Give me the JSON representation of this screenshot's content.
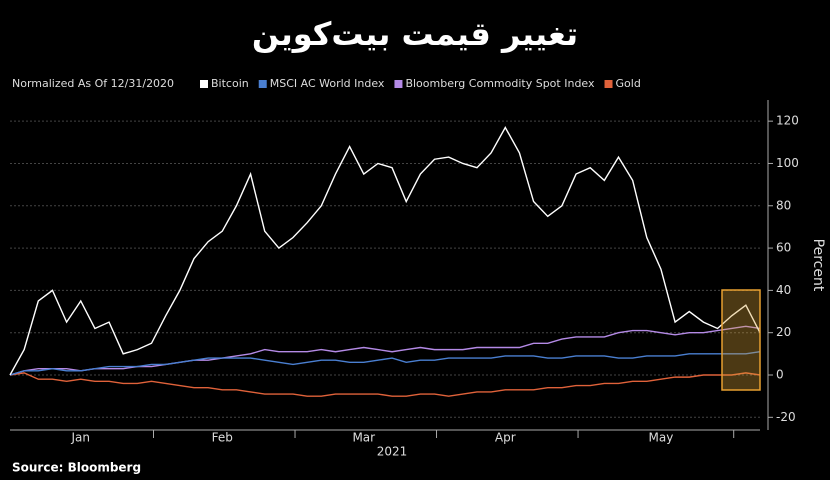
{
  "chart_data": {
    "type": "line",
    "title": "تغییر قیمت بیت‌کوین",
    "subtitle": "Normalized As Of 12/31/2020",
    "source": "Source: Bloomberg",
    "xlabel": "2021",
    "ylabel": "Percent",
    "categories": [
      null,
      null,
      null,
      null,
      null,
      "Jan",
      null,
      null,
      null,
      null,
      null,
      null,
      null,
      null,
      null,
      "Feb",
      null,
      null,
      null,
      null,
      null,
      null,
      null,
      null,
      null,
      "Mar",
      null,
      null,
      null,
      null,
      null,
      null,
      null,
      null,
      null,
      "Apr",
      null,
      null,
      null,
      null,
      null,
      null,
      null,
      null,
      null,
      null,
      "May",
      null,
      null,
      null,
      null,
      null,
      null,
      null
    ],
    "series": [
      {
        "name": "Bitcoin",
        "color": "#ffffff",
        "values": [
          0,
          12,
          35,
          40,
          25,
          35,
          22,
          25,
          10,
          12,
          15,
          28,
          40,
          55,
          63,
          68,
          80,
          95,
          68,
          60,
          65,
          72,
          80,
          95,
          108,
          95,
          100,
          98,
          82,
          95,
          102,
          103,
          100,
          98,
          105,
          117,
          105,
          82,
          75,
          80,
          95,
          98,
          92,
          103,
          92,
          65,
          50,
          25,
          30,
          25,
          22,
          28,
          33,
          20
        ]
      },
      {
        "name": "MSCI AC World Index",
        "color": "#4a7fd1",
        "values": [
          0,
          2,
          2,
          3,
          2,
          2,
          3,
          4,
          4,
          4,
          5,
          5,
          6,
          7,
          8,
          8,
          8,
          8,
          7,
          6,
          5,
          6,
          7,
          7,
          6,
          6,
          7,
          8,
          6,
          7,
          7,
          8,
          8,
          8,
          8,
          9,
          9,
          9,
          8,
          8,
          9,
          9,
          9,
          8,
          8,
          9,
          9,
          9,
          10,
          10,
          10,
          10,
          10,
          11
        ]
      },
      {
        "name": "Bloomberg Commodity Spot Index",
        "color": "#b48ae6",
        "values": [
          0,
          2,
          3,
          3,
          3,
          2,
          3,
          3,
          3,
          4,
          4,
          5,
          6,
          7,
          7,
          8,
          9,
          10,
          12,
          11,
          11,
          11,
          12,
          11,
          12,
          13,
          12,
          11,
          12,
          13,
          12,
          12,
          12,
          13,
          13,
          13,
          13,
          15,
          15,
          17,
          18,
          18,
          18,
          20,
          21,
          21,
          20,
          19,
          20,
          20,
          21,
          22,
          23,
          22
        ]
      },
      {
        "name": "Gold",
        "color": "#e0623a",
        "values": [
          0,
          1,
          -2,
          -2,
          -3,
          -2,
          -3,
          -3,
          -4,
          -4,
          -3,
          -4,
          -5,
          -6,
          -6,
          -7,
          -7,
          -8,
          -9,
          -9,
          -9,
          -10,
          -10,
          -9,
          -9,
          -9,
          -9,
          -10,
          -10,
          -9,
          -9,
          -10,
          -9,
          -8,
          -8,
          -7,
          -7,
          -7,
          -6,
          -6,
          -5,
          -5,
          -4,
          -4,
          -3,
          -3,
          -2,
          -1,
          -1,
          0,
          0,
          0,
          1,
          0
        ]
      }
    ],
    "ylim": [
      -26,
      130
    ],
    "yticks": [
      -20,
      0,
      20,
      40,
      60,
      80,
      100,
      120
    ],
    "grid": true
  }
}
